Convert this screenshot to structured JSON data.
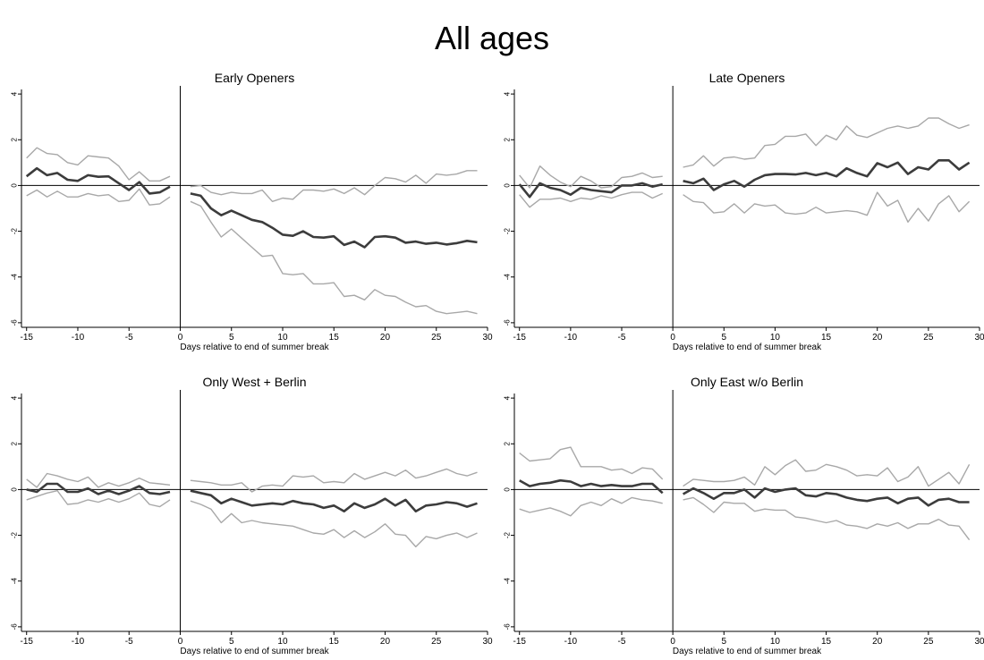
{
  "figure_title": "All ages",
  "colors": {
    "point_estimate": "#3c3c3c",
    "confidence_band": "#a8a8a8",
    "axis": "#000000"
  },
  "chart_data": [
    {
      "type": "line",
      "title": "Early Openers",
      "xlabel": "Days relative to end of summer break",
      "ylabel": "",
      "xlim": [
        -15.5,
        30
      ],
      "ylim": [
        -6.2,
        4.2
      ],
      "xticks": [
        -15,
        -10,
        -5,
        0,
        5,
        10,
        15,
        20,
        25,
        30
      ],
      "yticks": [
        -6,
        -4,
        -2,
        0,
        2,
        4
      ],
      "grid": false,
      "x_pre": [
        -15,
        -14,
        -13,
        -12,
        -11,
        -10,
        -9,
        -8,
        -7,
        -6,
        -5,
        -4,
        -3,
        -2,
        -1
      ],
      "x_post": [
        1,
        2,
        3,
        4,
        5,
        6,
        7,
        8,
        9,
        10,
        11,
        12,
        13,
        14,
        15,
        16,
        17,
        18,
        19,
        20,
        21,
        22,
        23,
        24,
        25,
        26,
        27,
        28,
        29
      ],
      "series": [
        {
          "role": "estimate",
          "pre": [
            0.4,
            0.75,
            0.45,
            0.55,
            0.25,
            0.2,
            0.45,
            0.38,
            0.4,
            0.1,
            -0.2,
            0.15,
            -0.35,
            -0.3,
            -0.05
          ],
          "post": [
            -0.35,
            -0.45,
            -1.0,
            -1.3,
            -1.1,
            -1.3,
            -1.5,
            -1.6,
            -1.85,
            -2.15,
            -2.2,
            -2.0,
            -2.25,
            -2.28,
            -2.22,
            -2.6,
            -2.45,
            -2.7,
            -2.25,
            -2.22,
            -2.28,
            -2.5,
            -2.45,
            -2.55,
            -2.5,
            -2.58,
            -2.52,
            -2.42,
            -2.48
          ]
        },
        {
          "role": "upper_ci",
          "pre": [
            1.2,
            1.65,
            1.4,
            1.35,
            1.0,
            0.9,
            1.3,
            1.25,
            1.2,
            0.85,
            0.25,
            0.6,
            0.2,
            0.2,
            0.4
          ],
          "post": [
            -0.05,
            0.0,
            -0.3,
            -0.4,
            -0.3,
            -0.35,
            -0.35,
            -0.2,
            -0.7,
            -0.55,
            -0.6,
            -0.2,
            -0.2,
            -0.25,
            -0.15,
            -0.35,
            -0.1,
            -0.4,
            0.0,
            0.35,
            0.3,
            0.15,
            0.45,
            0.1,
            0.5,
            0.45,
            0.5,
            0.65,
            0.65
          ]
        },
        {
          "role": "lower_ci",
          "pre": [
            -0.45,
            -0.2,
            -0.5,
            -0.25,
            -0.5,
            -0.5,
            -0.35,
            -0.45,
            -0.4,
            -0.7,
            -0.65,
            -0.15,
            -0.85,
            -0.8,
            -0.5
          ],
          "post": [
            -0.7,
            -0.9,
            -1.6,
            -2.25,
            -1.9,
            -2.3,
            -2.7,
            -3.1,
            -3.05,
            -3.85,
            -3.9,
            -3.85,
            -4.3,
            -4.3,
            -4.25,
            -4.85,
            -4.8,
            -5.0,
            -4.55,
            -4.8,
            -4.85,
            -5.1,
            -5.3,
            -5.25,
            -5.5,
            -5.6,
            -5.55,
            -5.5,
            -5.6
          ]
        }
      ]
    },
    {
      "type": "line",
      "title": "Late Openers",
      "xlabel": "Days relative to end of summer break",
      "ylabel": "",
      "xlim": [
        -15.5,
        30
      ],
      "ylim": [
        -6.2,
        4.2
      ],
      "xticks": [
        -15,
        -10,
        -5,
        0,
        5,
        10,
        15,
        20,
        25,
        30
      ],
      "yticks": [
        -6,
        -4,
        -2,
        0,
        2,
        4
      ],
      "grid": false,
      "x_pre": [
        -15,
        -14,
        -13,
        -12,
        -11,
        -10,
        -9,
        -8,
        -7,
        -6,
        -5,
        -4,
        -3,
        -2,
        -1
      ],
      "x_post": [
        1,
        2,
        3,
        4,
        5,
        6,
        7,
        8,
        9,
        10,
        11,
        12,
        13,
        14,
        15,
        16,
        17,
        18,
        19,
        20,
        21,
        22,
        23,
        24,
        25,
        26,
        27,
        28,
        29
      ],
      "series": [
        {
          "role": "estimate",
          "pre": [
            0.05,
            -0.5,
            0.1,
            -0.1,
            -0.2,
            -0.4,
            -0.1,
            -0.2,
            -0.25,
            -0.3,
            0.0,
            0.0,
            0.1,
            -0.05,
            0.05
          ],
          "post": [
            0.2,
            0.1,
            0.3,
            -0.2,
            0.05,
            0.2,
            -0.05,
            0.25,
            0.45,
            0.5,
            0.5,
            0.48,
            0.55,
            0.45,
            0.55,
            0.4,
            0.75,
            0.55,
            0.4,
            0.98,
            0.8,
            1.0,
            0.5,
            0.8,
            0.7,
            1.1,
            1.1,
            0.7,
            1.0
          ]
        },
        {
          "role": "upper_ci",
          "pre": [
            0.45,
            -0.1,
            0.85,
            0.45,
            0.15,
            -0.05,
            0.4,
            0.2,
            -0.1,
            -0.05,
            0.35,
            0.4,
            0.55,
            0.35,
            0.4
          ],
          "post": [
            0.8,
            0.9,
            1.3,
            0.85,
            1.2,
            1.25,
            1.15,
            1.2,
            1.75,
            1.8,
            2.15,
            2.15,
            2.25,
            1.75,
            2.2,
            2.0,
            2.6,
            2.2,
            2.1,
            2.3,
            2.5,
            2.6,
            2.5,
            2.6,
            2.95,
            2.95,
            2.7,
            2.5,
            2.65
          ]
        },
        {
          "role": "lower_ci",
          "pre": [
            -0.4,
            -0.95,
            -0.6,
            -0.6,
            -0.55,
            -0.7,
            -0.55,
            -0.6,
            -0.45,
            -0.55,
            -0.4,
            -0.3,
            -0.3,
            -0.55,
            -0.35
          ],
          "post": [
            -0.4,
            -0.7,
            -0.75,
            -1.2,
            -1.15,
            -0.8,
            -1.2,
            -0.8,
            -0.9,
            -0.85,
            -1.2,
            -1.25,
            -1.2,
            -0.95,
            -1.2,
            -1.15,
            -1.1,
            -1.15,
            -1.3,
            -0.3,
            -0.9,
            -0.65,
            -1.6,
            -1.0,
            -1.55,
            -0.8,
            -0.45,
            -1.15,
            -0.7
          ]
        }
      ]
    },
    {
      "type": "line",
      "title": "Only West + Berlin",
      "xlabel": "Days relative to end of summer break",
      "ylabel": "",
      "xlim": [
        -15.5,
        30
      ],
      "ylim": [
        -6.2,
        4.2
      ],
      "xticks": [
        -15,
        -10,
        -5,
        0,
        5,
        10,
        15,
        20,
        25,
        30
      ],
      "yticks": [
        -6,
        -4,
        -2,
        0,
        2,
        4
      ],
      "grid": false,
      "x_pre": [
        -15,
        -14,
        -13,
        -12,
        -11,
        -10,
        -9,
        -8,
        -7,
        -6,
        -5,
        -4,
        -3,
        -2,
        -1
      ],
      "x_post": [
        1,
        2,
        3,
        4,
        5,
        6,
        7,
        8,
        9,
        10,
        11,
        12,
        13,
        14,
        15,
        16,
        17,
        18,
        19,
        20,
        21,
        22,
        23,
        24,
        25,
        26,
        27,
        28,
        29
      ],
      "series": [
        {
          "role": "estimate",
          "pre": [
            0.0,
            -0.1,
            0.25,
            0.25,
            -0.1,
            -0.1,
            0.05,
            -0.2,
            -0.05,
            -0.2,
            -0.05,
            0.15,
            -0.15,
            -0.2,
            -0.1
          ],
          "post": [
            -0.05,
            -0.15,
            -0.25,
            -0.6,
            -0.4,
            -0.55,
            -0.7,
            -0.65,
            -0.6,
            -0.65,
            -0.5,
            -0.6,
            -0.65,
            -0.8,
            -0.7,
            -0.95,
            -0.6,
            -0.8,
            -0.65,
            -0.4,
            -0.7,
            -0.45,
            -0.95,
            -0.7,
            -0.65,
            -0.55,
            -0.6,
            -0.75,
            -0.6
          ]
        },
        {
          "role": "upper_ci",
          "pre": [
            0.45,
            0.1,
            0.7,
            0.6,
            0.45,
            0.35,
            0.55,
            0.1,
            0.3,
            0.15,
            0.3,
            0.5,
            0.3,
            0.25,
            0.2
          ],
          "post": [
            0.4,
            0.35,
            0.3,
            0.2,
            0.2,
            0.3,
            -0.1,
            0.15,
            0.2,
            0.15,
            0.6,
            0.55,
            0.6,
            0.3,
            0.35,
            0.3,
            0.7,
            0.45,
            0.6,
            0.75,
            0.6,
            0.85,
            0.5,
            0.6,
            0.75,
            0.9,
            0.7,
            0.6,
            0.75
          ]
        },
        {
          "role": "lower_ci",
          "pre": [
            -0.45,
            -0.3,
            -0.15,
            -0.05,
            -0.65,
            -0.6,
            -0.45,
            -0.55,
            -0.4,
            -0.55,
            -0.4,
            -0.15,
            -0.65,
            -0.75,
            -0.45
          ],
          "post": [
            -0.5,
            -0.65,
            -0.85,
            -1.45,
            -1.05,
            -1.45,
            -1.35,
            -1.45,
            -1.5,
            -1.55,
            -1.6,
            -1.75,
            -1.9,
            -1.95,
            -1.75,
            -2.1,
            -1.8,
            -2.1,
            -1.85,
            -1.5,
            -1.95,
            -2.0,
            -2.5,
            -2.05,
            -2.15,
            -2.0,
            -1.9,
            -2.1,
            -1.9
          ]
        }
      ]
    },
    {
      "type": "line",
      "title": "Only East w/o Berlin",
      "xlabel": "Days relative to end of summer break",
      "ylabel": "",
      "xlim": [
        -15.5,
        30
      ],
      "ylim": [
        -6.2,
        4.2
      ],
      "xticks": [
        -15,
        -10,
        -5,
        0,
        5,
        10,
        15,
        20,
        25,
        30
      ],
      "yticks": [
        -6,
        -4,
        -2,
        0,
        2,
        4
      ],
      "grid": false,
      "x_pre": [
        -15,
        -14,
        -13,
        -12,
        -11,
        -10,
        -9,
        -8,
        -7,
        -6,
        -5,
        -4,
        -3,
        -2,
        -1
      ],
      "x_post": [
        1,
        2,
        3,
        4,
        5,
        6,
        7,
        8,
        9,
        10,
        11,
        12,
        13,
        14,
        15,
        16,
        17,
        18,
        19,
        20,
        21,
        22,
        23,
        24,
        25,
        26,
        27,
        28,
        29
      ],
      "series": [
        {
          "role": "estimate",
          "pre": [
            0.4,
            0.15,
            0.25,
            0.3,
            0.4,
            0.35,
            0.15,
            0.25,
            0.15,
            0.2,
            0.15,
            0.15,
            0.25,
            0.25,
            -0.15
          ],
          "post": [
            -0.2,
            0.05,
            -0.15,
            -0.4,
            -0.15,
            -0.15,
            0.0,
            -0.35,
            0.05,
            -0.1,
            0.0,
            0.05,
            -0.25,
            -0.3,
            -0.15,
            -0.2,
            -0.35,
            -0.45,
            -0.5,
            -0.4,
            -0.35,
            -0.6,
            -0.4,
            -0.35,
            -0.7,
            -0.45,
            -0.4,
            -0.55,
            -0.55
          ]
        },
        {
          "role": "upper_ci",
          "pre": [
            1.6,
            1.25,
            1.3,
            1.35,
            1.75,
            1.85,
            1.0,
            1.0,
            1.0,
            0.85,
            0.9,
            0.7,
            0.95,
            0.9,
            0.45
          ],
          "post": [
            0.15,
            0.45,
            0.4,
            0.35,
            0.35,
            0.4,
            0.55,
            0.2,
            1.0,
            0.65,
            1.05,
            1.3,
            0.8,
            0.85,
            1.1,
            1.0,
            0.85,
            0.6,
            0.65,
            0.6,
            0.95,
            0.35,
            0.55,
            1.0,
            0.15,
            0.45,
            0.75,
            0.25,
            1.1
          ]
        },
        {
          "role": "lower_ci",
          "pre": [
            -0.85,
            -1.0,
            -0.9,
            -0.8,
            -0.95,
            -1.15,
            -0.7,
            -0.55,
            -0.7,
            -0.4,
            -0.6,
            -0.35,
            -0.45,
            -0.5,
            -0.6
          ],
          "post": [
            -0.45,
            -0.35,
            -0.65,
            -1.0,
            -0.55,
            -0.6,
            -0.6,
            -0.95,
            -0.85,
            -0.9,
            -0.9,
            -1.2,
            -1.25,
            -1.35,
            -1.45,
            -1.35,
            -1.55,
            -1.6,
            -1.7,
            -1.5,
            -1.6,
            -1.45,
            -1.7,
            -1.5,
            -1.5,
            -1.3,
            -1.55,
            -1.6,
            -2.2
          ]
        }
      ]
    }
  ]
}
